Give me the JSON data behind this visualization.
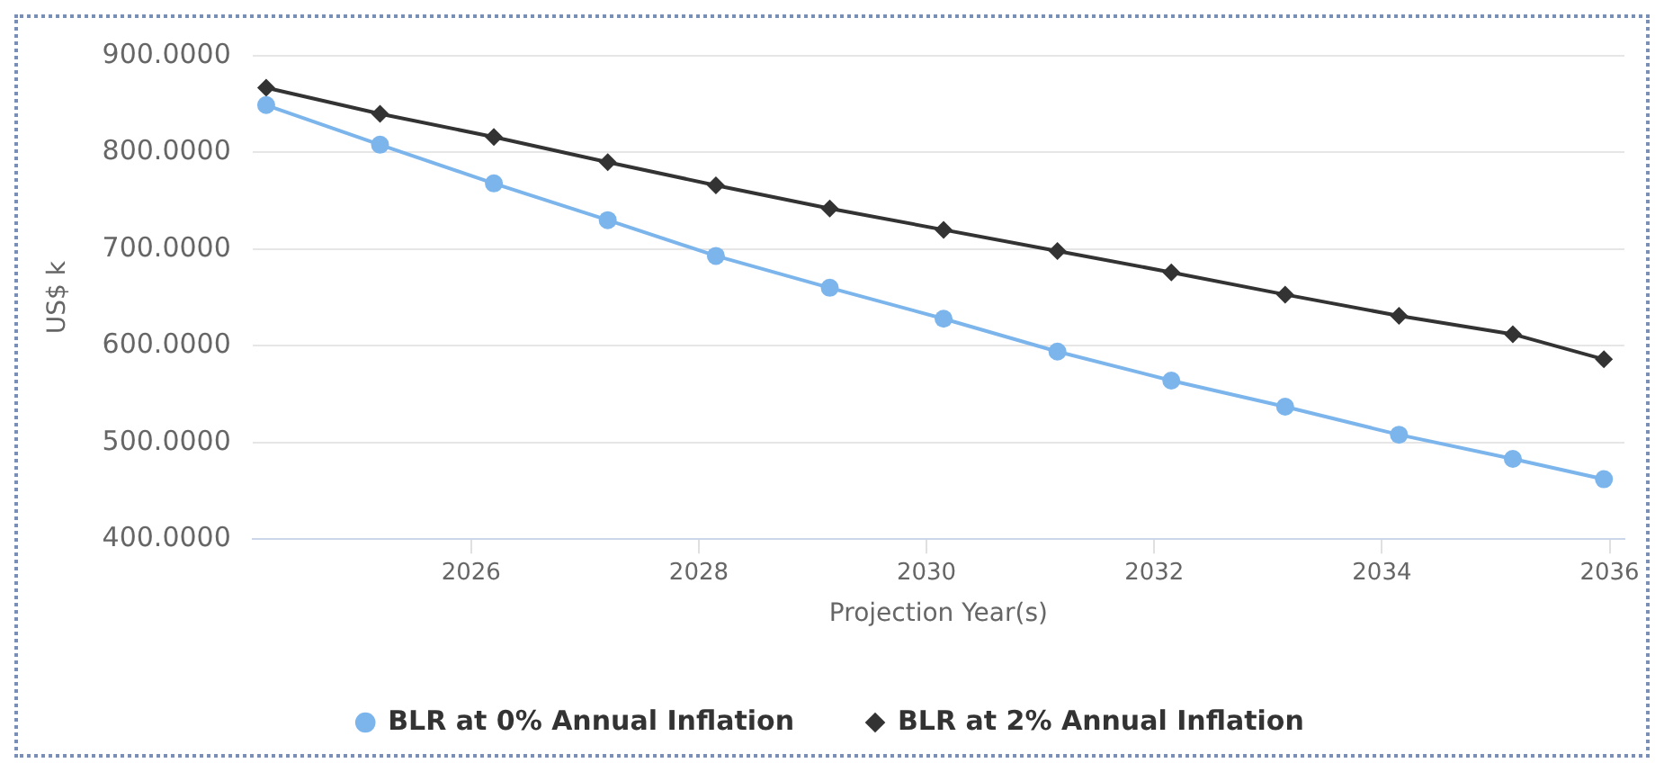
{
  "chart_data": {
    "type": "line",
    "xlabel": "Projection Year(s)",
    "ylabel": "US$ k",
    "x": [
      2024.2,
      2025.2,
      2026.2,
      2027.2,
      2028.15,
      2029.15,
      2030.15,
      2031.15,
      2032.15,
      2033.15,
      2034.15,
      2035.15,
      2035.95
    ],
    "series": [
      {
        "name": "BLR at 0% Annual Inflation",
        "color": "#7cb5ec",
        "marker": "circle",
        "values": [
          849,
          808,
          768,
          730,
          693,
          660,
          628,
          594,
          564,
          537,
          508,
          483,
          462
        ]
      },
      {
        "name": "BLR at 2% Annual Inflation",
        "color": "#333333",
        "marker": "diamond",
        "values": [
          867,
          840,
          816,
          790,
          766,
          742,
          720,
          698,
          676,
          653,
          631,
          612,
          586
        ]
      }
    ],
    "xlim": [
      2024.08,
      2036.13
    ],
    "xticks": [
      2026,
      2028,
      2030,
      2032,
      2034,
      2036
    ],
    "ylim": [
      400,
      900
    ],
    "yticks": [
      {
        "value": 400,
        "label": "400.0000"
      },
      {
        "value": 500,
        "label": "500.0000"
      },
      {
        "value": 600,
        "label": "600.0000"
      },
      {
        "value": 700,
        "label": "700.0000"
      },
      {
        "value": 800,
        "label": "800.0000"
      },
      {
        "value": 900,
        "label": "900.0000"
      }
    ],
    "grid": "y",
    "legend": "bottom",
    "line_style": "solid"
  }
}
